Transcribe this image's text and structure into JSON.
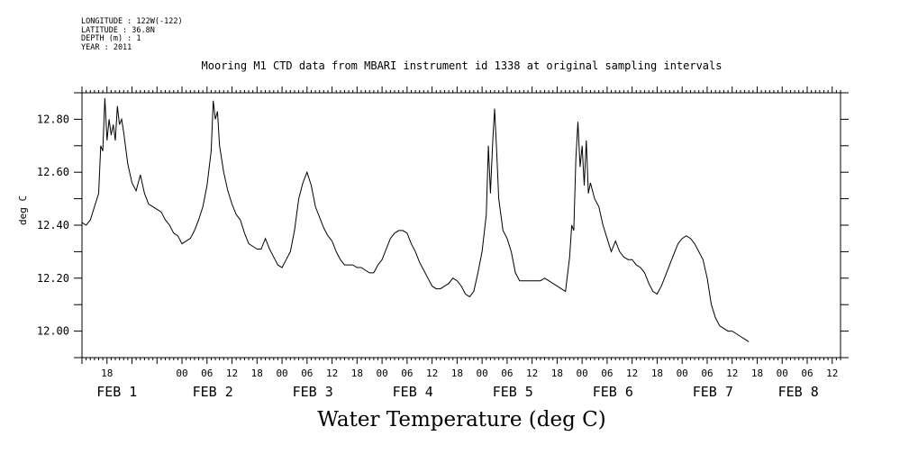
{
  "metadata": [
    "LONGITUDE : 122W(-122)",
    "LATITUDE : 36.8N",
    "DEPTH (m) : 1",
    "YEAR : 2011"
  ],
  "chart_data": {
    "type": "line",
    "title": "Mooring M1 CTD data from MBARI instrument id 1338 at original sampling intervals",
    "subtitle": "Water Temperature (deg C)",
    "xlabel": "",
    "ylabel": "deg C",
    "x_unit": "hours since 31-JAN-2011 00:00",
    "xlim": [
      -24,
      158
    ],
    "ylim": [
      11.9,
      12.9
    ],
    "y_ticks": [
      12.0,
      12.2,
      12.4,
      12.6,
      12.8
    ],
    "y_tick_labels": [
      "12.00",
      "12.20",
      "12.40",
      "12.60",
      "12.80"
    ],
    "x_hour_ticks": [
      {
        "x": -18,
        "label": "18"
      },
      {
        "x": 0,
        "label": "00"
      },
      {
        "x": 6,
        "label": "06"
      },
      {
        "x": 12,
        "label": "12"
      },
      {
        "x": 18,
        "label": "18"
      },
      {
        "x": 24,
        "label": "00"
      },
      {
        "x": 30,
        "label": "06"
      },
      {
        "x": 36,
        "label": "12"
      },
      {
        "x": 42,
        "label": "18"
      },
      {
        "x": 48,
        "label": "00"
      },
      {
        "x": 54,
        "label": "06"
      },
      {
        "x": 60,
        "label": "12"
      },
      {
        "x": 66,
        "label": "18"
      },
      {
        "x": 72,
        "label": "00"
      },
      {
        "x": 78,
        "label": "06"
      },
      {
        "x": 84,
        "label": "12"
      },
      {
        "x": 90,
        "label": "18"
      },
      {
        "x": 96,
        "label": "00"
      },
      {
        "x": 102,
        "label": "06"
      },
      {
        "x": 108,
        "label": "12"
      },
      {
        "x": 114,
        "label": "18"
      },
      {
        "x": 120,
        "label": "00"
      },
      {
        "x": 126,
        "label": "06"
      },
      {
        "x": 132,
        "label": "12"
      },
      {
        "x": 138,
        "label": "18"
      },
      {
        "x": 144,
        "label": "00"
      },
      {
        "x": 150,
        "label": "06"
      },
      {
        "x": 156,
        "label": "12"
      }
    ],
    "x_day_labels": [
      {
        "x": -20.5,
        "label": "FEB  1"
      },
      {
        "x": 2.5,
        "label": "FEB  2"
      },
      {
        "x": 26.5,
        "label": "FEB  3"
      },
      {
        "x": 50.5,
        "label": "FEB  4"
      },
      {
        "x": 74.5,
        "label": "FEB  5"
      },
      {
        "x": 98.5,
        "label": "FEB  6"
      },
      {
        "x": 122.5,
        "label": "FEB  7"
      },
      {
        "x": 143,
        "label": "FEB  8"
      }
    ],
    "series": [
      {
        "values": [
          [
            -24,
            12.41
          ],
          [
            -23,
            12.4
          ],
          [
            -22,
            12.42
          ],
          [
            -21,
            12.47
          ],
          [
            -20,
            12.52
          ],
          [
            -19.5,
            12.7
          ],
          [
            -19,
            12.68
          ],
          [
            -18.5,
            12.88
          ],
          [
            -18,
            12.72
          ],
          [
            -17.5,
            12.8
          ],
          [
            -17,
            12.74
          ],
          [
            -16.5,
            12.78
          ],
          [
            -16,
            12.72
          ],
          [
            -15.5,
            12.85
          ],
          [
            -15,
            12.78
          ],
          [
            -14.5,
            12.8
          ],
          [
            -14,
            12.75
          ],
          [
            -13,
            12.63
          ],
          [
            -12,
            12.56
          ],
          [
            -11,
            12.53
          ],
          [
            -10,
            12.59
          ],
          [
            -9,
            12.52
          ],
          [
            -8,
            12.48
          ],
          [
            -7,
            12.47
          ],
          [
            -6,
            12.46
          ],
          [
            -5,
            12.45
          ],
          [
            -4,
            12.42
          ],
          [
            -3,
            12.4
          ],
          [
            -2,
            12.37
          ],
          [
            -1,
            12.36
          ],
          [
            0,
            12.33
          ],
          [
            1,
            12.34
          ],
          [
            2,
            12.35
          ],
          [
            3,
            12.38
          ],
          [
            4,
            12.42
          ],
          [
            5,
            12.47
          ],
          [
            6,
            12.55
          ],
          [
            7,
            12.68
          ],
          [
            7.5,
            12.87
          ],
          [
            8,
            12.8
          ],
          [
            8.5,
            12.83
          ],
          [
            9,
            12.7
          ],
          [
            10,
            12.6
          ],
          [
            11,
            12.53
          ],
          [
            12,
            12.48
          ],
          [
            13,
            12.44
          ],
          [
            14,
            12.42
          ],
          [
            15,
            12.37
          ],
          [
            16,
            12.33
          ],
          [
            17,
            12.32
          ],
          [
            18,
            12.31
          ],
          [
            19,
            12.31
          ],
          [
            20,
            12.35
          ],
          [
            21,
            12.31
          ],
          [
            22,
            12.28
          ],
          [
            23,
            12.25
          ],
          [
            24,
            12.24
          ],
          [
            25,
            12.27
          ],
          [
            26,
            12.3
          ],
          [
            27,
            12.38
          ],
          [
            28,
            12.5
          ],
          [
            29,
            12.56
          ],
          [
            30,
            12.6
          ],
          [
            31,
            12.55
          ],
          [
            32,
            12.47
          ],
          [
            33,
            12.43
          ],
          [
            34,
            12.39
          ],
          [
            35,
            12.36
          ],
          [
            36,
            12.34
          ],
          [
            37,
            12.3
          ],
          [
            38,
            12.27
          ],
          [
            39,
            12.25
          ],
          [
            40,
            12.25
          ],
          [
            41,
            12.25
          ],
          [
            42,
            12.24
          ],
          [
            43,
            12.24
          ],
          [
            44,
            12.23
          ],
          [
            45,
            12.22
          ],
          [
            46,
            12.22
          ],
          [
            47,
            12.25
          ],
          [
            48,
            12.27
          ],
          [
            49,
            12.31
          ],
          [
            50,
            12.35
          ],
          [
            51,
            12.37
          ],
          [
            52,
            12.38
          ],
          [
            53,
            12.38
          ],
          [
            54,
            12.37
          ],
          [
            55,
            12.33
          ],
          [
            56,
            12.3
          ],
          [
            57,
            12.26
          ],
          [
            58,
            12.23
          ],
          [
            59,
            12.2
          ],
          [
            60,
            12.17
          ],
          [
            61,
            12.16
          ],
          [
            62,
            12.16
          ],
          [
            63,
            12.17
          ],
          [
            64,
            12.18
          ],
          [
            65,
            12.2
          ],
          [
            66,
            12.19
          ],
          [
            67,
            12.17
          ],
          [
            68,
            12.14
          ],
          [
            69,
            12.13
          ],
          [
            70,
            12.15
          ],
          [
            71,
            12.22
          ],
          [
            72,
            12.3
          ],
          [
            73,
            12.44
          ],
          [
            73.5,
            12.7
          ],
          [
            74,
            12.52
          ],
          [
            74.5,
            12.7
          ],
          [
            75,
            12.84
          ],
          [
            75.5,
            12.68
          ],
          [
            76,
            12.5
          ],
          [
            77,
            12.38
          ],
          [
            78,
            12.35
          ],
          [
            79,
            12.3
          ],
          [
            80,
            12.22
          ],
          [
            81,
            12.19
          ],
          [
            82,
            12.19
          ],
          [
            83,
            12.19
          ],
          [
            84,
            12.19
          ],
          [
            85,
            12.19
          ],
          [
            86,
            12.19
          ],
          [
            87,
            12.2
          ],
          [
            88,
            12.19
          ],
          [
            89,
            12.18
          ],
          [
            90,
            12.17
          ],
          [
            91,
            12.16
          ],
          [
            92,
            12.15
          ],
          [
            93,
            12.28
          ],
          [
            93.5,
            12.4
          ],
          [
            94,
            12.38
          ],
          [
            94.5,
            12.65
          ],
          [
            95,
            12.79
          ],
          [
            95.5,
            12.62
          ],
          [
            96,
            12.7
          ],
          [
            96.5,
            12.55
          ],
          [
            97,
            12.72
          ],
          [
            97.5,
            12.52
          ],
          [
            98,
            12.56
          ],
          [
            99,
            12.5
          ],
          [
            100,
            12.47
          ],
          [
            101,
            12.4
          ],
          [
            102,
            12.35
          ],
          [
            103,
            12.3
          ],
          [
            104,
            12.34
          ],
          [
            105,
            12.3
          ],
          [
            106,
            12.28
          ],
          [
            107,
            12.27
          ],
          [
            108,
            12.27
          ],
          [
            109,
            12.25
          ],
          [
            110,
            12.24
          ],
          [
            111,
            12.22
          ],
          [
            112,
            12.18
          ],
          [
            113,
            12.15
          ],
          [
            114,
            12.14
          ],
          [
            115,
            12.17
          ],
          [
            116,
            12.21
          ],
          [
            117,
            12.25
          ],
          [
            118,
            12.29
          ],
          [
            119,
            12.33
          ],
          [
            120,
            12.35
          ],
          [
            121,
            12.36
          ],
          [
            122,
            12.35
          ],
          [
            123,
            12.33
          ],
          [
            124,
            12.3
          ],
          [
            125,
            12.27
          ],
          [
            126,
            12.2
          ],
          [
            127,
            12.1
          ],
          [
            128,
            12.05
          ],
          [
            129,
            12.02
          ],
          [
            130,
            12.01
          ],
          [
            131,
            12.0
          ],
          [
            132,
            12.0
          ],
          [
            133,
            11.99
          ],
          [
            134,
            11.98
          ],
          [
            135,
            11.97
          ],
          [
            136,
            11.96
          ]
        ]
      }
    ]
  }
}
